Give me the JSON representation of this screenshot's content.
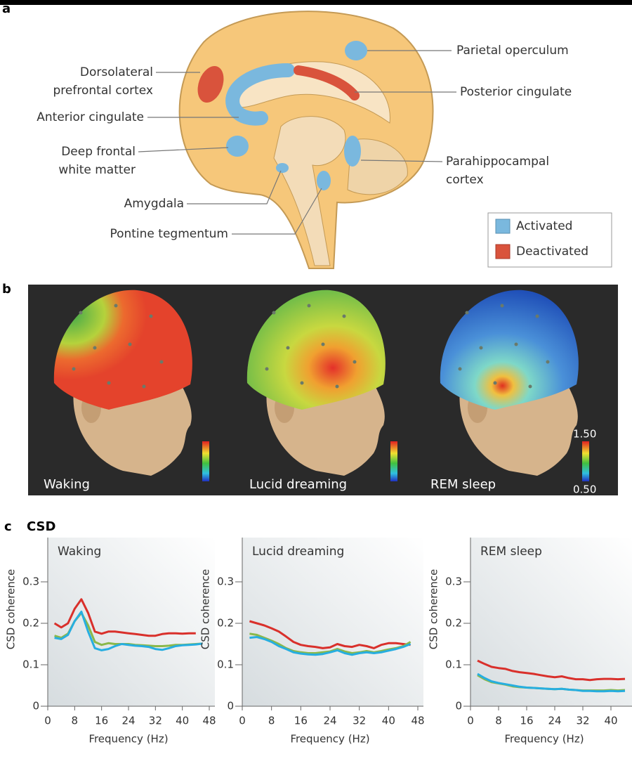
{
  "figure": {
    "panels": [
      "a",
      "b",
      "c"
    ]
  },
  "panel_a": {
    "labels": [
      {
        "lines": [
          "Dorsolateral",
          "prefrontal cortex"
        ]
      },
      {
        "lines": [
          "Anterior cingulate"
        ]
      },
      {
        "lines": [
          "Deep frontal",
          "white matter"
        ]
      },
      {
        "lines": [
          "Amygdala"
        ]
      },
      {
        "lines": [
          "Pontine tegmentum"
        ]
      },
      {
        "lines": [
          "Parietal operculum"
        ]
      },
      {
        "lines": [
          "Posterior cingulate"
        ]
      },
      {
        "lines": [
          "Parahippocampal",
          "cortex"
        ]
      }
    ],
    "legend": [
      "Activated",
      "Deactivated"
    ]
  },
  "panel_b": {
    "captions": [
      "Waking",
      "Lucid dreaming",
      "REM sleep"
    ],
    "colorbar": {
      "max": "1.50",
      "min": "0.50"
    }
  },
  "panel_c": {
    "title": "CSD"
  },
  "chart_data": [
    {
      "type": "line",
      "title": "Waking",
      "x_label": "Frequency (Hz)",
      "y_label": "CSD coherence",
      "x": [
        2,
        4,
        6,
        8,
        10,
        12,
        14,
        16,
        18,
        20,
        22,
        24,
        26,
        28,
        30,
        32,
        34,
        36,
        38,
        40,
        42,
        44,
        46
      ],
      "series": [
        {
          "color": "#d9302b",
          "values": [
            0.2,
            0.19,
            0.2,
            0.235,
            0.258,
            0.225,
            0.18,
            0.175,
            0.18,
            0.18,
            0.178,
            0.176,
            0.174,
            0.172,
            0.17,
            0.17,
            0.174,
            0.176,
            0.176,
            0.175,
            0.176,
            0.176,
            null
          ]
        },
        {
          "color": "#8ab84a",
          "values": [
            0.17,
            0.165,
            0.175,
            0.205,
            0.225,
            0.195,
            0.155,
            0.148,
            0.152,
            0.15,
            0.15,
            0.15,
            0.148,
            0.147,
            0.146,
            0.145,
            0.145,
            0.146,
            0.148,
            0.148,
            0.149,
            0.15,
            0.151
          ]
        },
        {
          "color": "#27aee0",
          "values": [
            0.165,
            0.162,
            0.172,
            0.205,
            0.228,
            0.18,
            0.14,
            0.135,
            0.138,
            0.145,
            0.15,
            0.148,
            0.146,
            0.145,
            0.143,
            0.138,
            0.136,
            0.14,
            0.145,
            0.147,
            0.148,
            0.149,
            0.151
          ]
        }
      ],
      "xlim": [
        0,
        48
      ],
      "xticks": [
        0,
        8,
        16,
        24,
        32,
        40,
        48
      ],
      "ylim": [
        0,
        0.4
      ],
      "yticks": [
        0,
        0.1,
        0.2,
        0.3
      ]
    },
    {
      "type": "line",
      "title": "Lucid dreaming",
      "x_label": "Frequency (Hz)",
      "y_label": "CSD coherence",
      "x": [
        2,
        4,
        6,
        8,
        10,
        12,
        14,
        16,
        18,
        20,
        22,
        24,
        26,
        28,
        30,
        32,
        34,
        36,
        38,
        40,
        42,
        44,
        46
      ],
      "series": [
        {
          "color": "#d9302b",
          "values": [
            0.205,
            0.2,
            0.195,
            0.188,
            0.18,
            0.168,
            0.155,
            0.148,
            0.145,
            0.143,
            0.14,
            0.142,
            0.15,
            0.145,
            0.143,
            0.148,
            0.145,
            0.14,
            0.148,
            0.152,
            0.152,
            0.15,
            0.148
          ]
        },
        {
          "color": "#8ab84a",
          "values": [
            0.175,
            0.172,
            0.165,
            0.158,
            0.15,
            0.14,
            0.133,
            0.13,
            0.128,
            0.128,
            0.13,
            0.132,
            0.138,
            0.132,
            0.128,
            0.13,
            0.133,
            0.13,
            0.133,
            0.137,
            0.14,
            0.145,
            0.155
          ]
        },
        {
          "color": "#27aee0",
          "values": [
            0.165,
            0.167,
            0.162,
            0.155,
            0.145,
            0.138,
            0.13,
            0.127,
            0.125,
            0.124,
            0.126,
            0.13,
            0.135,
            0.128,
            0.124,
            0.128,
            0.13,
            0.128,
            0.13,
            0.134,
            0.138,
            0.143,
            0.15
          ]
        }
      ],
      "xlim": [
        0,
        48
      ],
      "xticks": [
        0,
        8,
        16,
        24,
        32,
        40,
        48
      ],
      "ylim": [
        0,
        0.4
      ],
      "yticks": [
        0,
        0.1,
        0.2,
        0.3
      ]
    },
    {
      "type": "line",
      "title": "REM sleep",
      "x_label": "Frequency (Hz)",
      "y_label": "CSD coherence",
      "x": [
        2,
        4,
        6,
        8,
        10,
        12,
        14,
        16,
        18,
        20,
        22,
        24,
        26,
        28,
        30,
        32,
        34,
        36,
        38,
        40,
        42,
        44
      ],
      "series": [
        {
          "color": "#d9302b",
          "values": [
            0.11,
            0.102,
            0.095,
            0.092,
            0.09,
            0.085,
            0.082,
            0.08,
            0.078,
            0.075,
            0.072,
            0.07,
            0.072,
            0.068,
            0.065,
            0.065,
            0.063,
            0.065,
            0.066,
            0.066,
            0.065,
            0.066
          ]
        },
        {
          "color": "#8ab84a",
          "values": [
            0.075,
            0.065,
            0.058,
            0.055,
            0.052,
            0.048,
            0.046,
            0.045,
            0.044,
            0.043,
            0.042,
            0.041,
            0.042,
            0.04,
            0.039,
            0.038,
            0.038,
            0.038,
            0.038,
            0.039,
            0.038,
            0.039
          ]
        },
        {
          "color": "#27aee0",
          "values": [
            0.078,
            0.068,
            0.06,
            0.056,
            0.053,
            0.05,
            0.047,
            0.045,
            0.044,
            0.043,
            0.042,
            0.041,
            0.042,
            0.04,
            0.039,
            0.037,
            0.037,
            0.036,
            0.036,
            0.037,
            0.036,
            0.037
          ]
        }
      ],
      "xlim": [
        0,
        46
      ],
      "xticks": [
        0,
        8,
        16,
        24,
        32,
        40
      ],
      "ylim": [
        0,
        0.4
      ],
      "yticks": [
        0,
        0.1,
        0.2,
        0.3
      ]
    }
  ]
}
